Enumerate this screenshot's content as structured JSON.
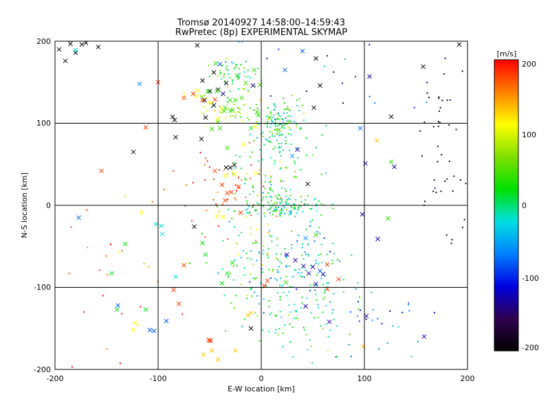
{
  "chart_data": {
    "type": "scatter",
    "title": "Tromsø 20140927 14:58:00–14:59:43",
    "subtitle": "RwPretec (8p) EXPERIMENTAL SKYMAP",
    "xlabel": "E-W location [km]",
    "ylabel": "N-S location [km]",
    "xlim": [
      -200,
      200
    ],
    "ylim": [
      -200,
      200
    ],
    "x_ticks": [
      "-200",
      "-100",
      "0",
      "100",
      "200"
    ],
    "y_ticks": [
      "-200",
      "-100",
      "0",
      "100",
      "200"
    ],
    "grid": true,
    "colorbar": {
      "label": "[m/s]",
      "range": [
        -200,
        200
      ],
      "ticks": [
        "200",
        "100",
        "0",
        "-100",
        "-200"
      ],
      "tick_values": [
        200,
        100,
        0,
        -100,
        -200
      ],
      "colormap": [
        "#000000",
        "#300050",
        "#0000e0",
        "#0080ff",
        "#00e0e0",
        "#00e000",
        "#80e000",
        "#ffff00",
        "#ff8000",
        "#ff0000"
      ]
    },
    "crosses": [
      [
        -196,
        190,
        -200
      ],
      [
        -190,
        176,
        -200
      ],
      [
        -185,
        197,
        -200
      ],
      [
        -180,
        186,
        -200
      ],
      [
        -174,
        196,
        -200
      ],
      [
        -170,
        198,
        -200
      ],
      [
        -158,
        193,
        -200
      ],
      [
        -62,
        195,
        -200
      ],
      [
        -57,
        152,
        -200
      ],
      [
        -55,
        128,
        -200
      ],
      [
        -50,
        139,
        -200
      ],
      [
        -46,
        162,
        -200
      ],
      [
        -46,
        122,
        -200
      ],
      [
        -42,
        141,
        -200
      ],
      [
        -34,
        149,
        -200
      ],
      [
        -34,
        46,
        -200
      ],
      [
        -30,
        46,
        -200
      ],
      [
        -26,
        49,
        -200
      ],
      [
        -58,
        81,
        -200
      ],
      [
        -54,
        107,
        -200
      ],
      [
        -86,
        108,
        -200
      ],
      [
        -84,
        104,
        -200
      ],
      [
        -83,
        83,
        -200
      ],
      [
        -124,
        65,
        -200
      ],
      [
        -65,
        -26,
        -200
      ],
      [
        -10,
        -150,
        -200
      ],
      [
        53,
        179,
        -200
      ],
      [
        57,
        146,
        -200
      ],
      [
        51,
        119,
        -200
      ],
      [
        45,
        26,
        -200
      ],
      [
        126,
        108,
        -200
      ],
      [
        157,
        169,
        -200
      ],
      [
        192,
        196,
        -200
      ],
      [
        105,
        157,
        -130
      ],
      [
        -8,
        146,
        -130
      ],
      [
        101,
        51,
        -130
      ],
      [
        35,
        68,
        -130
      ],
      [
        129,
        47,
        -130
      ],
      [
        98,
        -11,
        -130
      ],
      [
        113,
        -41,
        -130
      ],
      [
        25,
        -60,
        -130
      ],
      [
        33,
        -67,
        -130
      ],
      [
        41,
        -74,
        -130
      ],
      [
        46,
        -83,
        -130
      ],
      [
        50,
        -75,
        -130
      ],
      [
        60,
        -84,
        -130
      ],
      [
        53,
        -96,
        -130
      ],
      [
        43,
        -123,
        -130
      ],
      [
        102,
        -135,
        -130
      ],
      [
        66,
        -142,
        -130
      ],
      [
        158,
        -160,
        -130
      ],
      [
        -37,
        136,
        -130
      ],
      [
        -177,
        -15,
        -80
      ],
      [
        -139,
        -122,
        -80
      ],
      [
        -108,
        -152,
        -80
      ],
      [
        -104,
        -153,
        -80
      ],
      [
        -92,
        -141,
        -80
      ],
      [
        -40,
        172,
        -80
      ],
      [
        23,
        165,
        -80
      ],
      [
        40,
        188,
        -80
      ],
      [
        57,
        -80,
        -80
      ],
      [
        96,
        94,
        -80
      ],
      [
        -118,
        148,
        -60
      ],
      [
        -37,
        202,
        -60
      ],
      [
        -20,
        201,
        -60
      ],
      [
        30,
        60,
        -60
      ],
      [
        43,
        -40,
        -60
      ],
      [
        -180,
        189,
        -20
      ],
      [
        -102,
        -23,
        -20
      ],
      [
        -96,
        -35,
        -20
      ],
      [
        -97,
        -25,
        -20
      ],
      [
        -83,
        -87,
        -20
      ],
      [
        -145,
        -83,
        20
      ],
      [
        -140,
        -127,
        20
      ],
      [
        -132,
        -47,
        20
      ],
      [
        -112,
        -127,
        20
      ],
      [
        -57,
        -46,
        20
      ],
      [
        -54,
        -60,
        20
      ],
      [
        -38,
        -95,
        20
      ],
      [
        -33,
        -83,
        20
      ],
      [
        -28,
        -70,
        20
      ],
      [
        -10,
        94,
        20
      ],
      [
        -52,
        139,
        40
      ],
      [
        -48,
        93,
        40
      ],
      [
        -44,
        173,
        40
      ],
      [
        -43,
        139,
        40
      ],
      [
        -42,
        102,
        40
      ],
      [
        -40,
        94,
        40
      ],
      [
        -36,
        115,
        40
      ],
      [
        -35,
        119,
        40
      ],
      [
        -33,
        70,
        40
      ],
      [
        -30,
        128,
        40
      ],
      [
        -30,
        115,
        40
      ],
      [
        -28,
        116,
        40
      ],
      [
        -25,
        128,
        40
      ],
      [
        -19,
        131,
        40
      ],
      [
        -15,
        149,
        40
      ],
      [
        -7,
        165,
        40
      ],
      [
        -4,
        114,
        40
      ],
      [
        -3,
        110,
        40
      ],
      [
        -1,
        147,
        40
      ],
      [
        24,
        -94,
        40
      ],
      [
        123,
        -16,
        40
      ],
      [
        126,
        53,
        40
      ],
      [
        8,
        107,
        40
      ],
      [
        17,
        92,
        40
      ],
      [
        53,
        -36,
        40
      ],
      [
        -62,
        140,
        110
      ],
      [
        -50,
        125,
        110
      ],
      [
        -42,
        105,
        110
      ],
      [
        -39,
        118,
        110
      ],
      [
        -63,
        133,
        110
      ],
      [
        -17,
        74,
        110
      ],
      [
        -6,
        96,
        110
      ],
      [
        -43,
        -13,
        110
      ],
      [
        -37,
        -14,
        110
      ],
      [
        -35,
        36,
        110
      ],
      [
        -26,
        38,
        110
      ],
      [
        -5,
        39,
        110
      ],
      [
        -116,
        -9,
        110
      ],
      [
        -124,
        -152,
        110
      ],
      [
        -122,
        -143,
        110
      ],
      [
        -56,
        -182,
        130
      ],
      [
        -48,
        -177,
        130
      ],
      [
        -42,
        -188,
        130
      ],
      [
        -25,
        -177,
        130
      ],
      [
        -13,
        -134,
        130
      ],
      [
        -10,
        -131,
        130
      ],
      [
        99,
        -172,
        130
      ],
      [
        112,
        79,
        130
      ],
      [
        -100,
        150,
        180
      ],
      [
        -75,
        131,
        180
      ],
      [
        -66,
        136,
        180
      ],
      [
        -57,
        128,
        180
      ],
      [
        -45,
        129,
        180
      ],
      [
        -112,
        95,
        180
      ],
      [
        -45,
        42,
        180
      ],
      [
        -38,
        25,
        180
      ],
      [
        -33,
        15,
        180
      ],
      [
        -29,
        16,
        180
      ],
      [
        -22,
        23,
        180
      ],
      [
        -20,
        -9,
        180
      ],
      [
        -35,
        6,
        180
      ],
      [
        -155,
        42,
        180
      ],
      [
        -75,
        -73,
        180
      ],
      [
        -85,
        -103,
        180
      ],
      [
        -80,
        -120,
        180
      ],
      [
        -51,
        -164,
        180
      ],
      [
        -49,
        -165,
        180
      ],
      [
        -50,
        -165,
        180
      ],
      [
        64,
        -72,
        180
      ],
      [
        75,
        -90,
        180
      ],
      [
        64,
        -102,
        180
      ],
      [
        6,
        -92,
        180
      ],
      [
        3,
        -98,
        180
      ]
    ]
  }
}
